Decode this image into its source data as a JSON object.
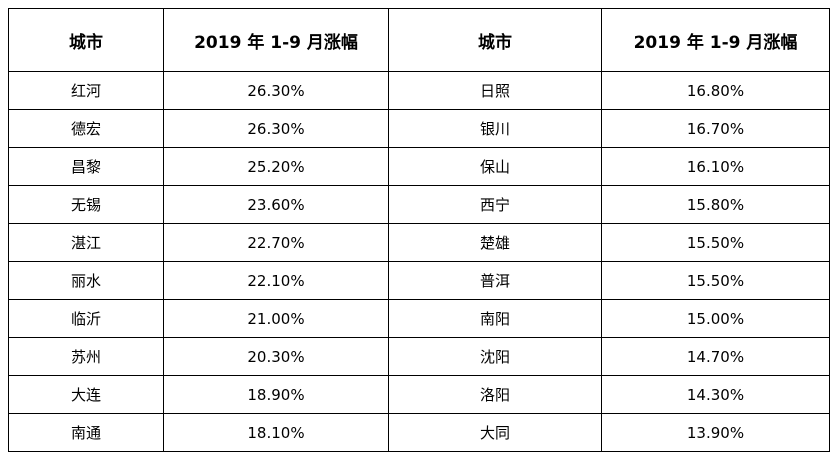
{
  "table": {
    "headers": [
      "城市",
      "2019 年 1-9 月涨幅",
      "城市",
      "2019 年 1-9 月涨幅"
    ],
    "rows": [
      [
        "红河",
        "26.30%",
        "日照",
        "16.80%"
      ],
      [
        "德宏",
        "26.30%",
        "银川",
        "16.70%"
      ],
      [
        "昌黎",
        "25.20%",
        "保山",
        "16.10%"
      ],
      [
        "无锡",
        "23.60%",
        "西宁",
        "15.80%"
      ],
      [
        "湛江",
        "22.70%",
        "楚雄",
        "15.50%"
      ],
      [
        "丽水",
        "22.10%",
        "普洱",
        "15.50%"
      ],
      [
        "临沂",
        "21.00%",
        "南阳",
        "15.00%"
      ],
      [
        "苏州",
        "20.30%",
        "沈阳",
        "14.70%"
      ],
      [
        "大连",
        "18.90%",
        "洛阳",
        "14.30%"
      ],
      [
        "南通",
        "18.10%",
        "大同",
        "13.90%"
      ]
    ]
  }
}
